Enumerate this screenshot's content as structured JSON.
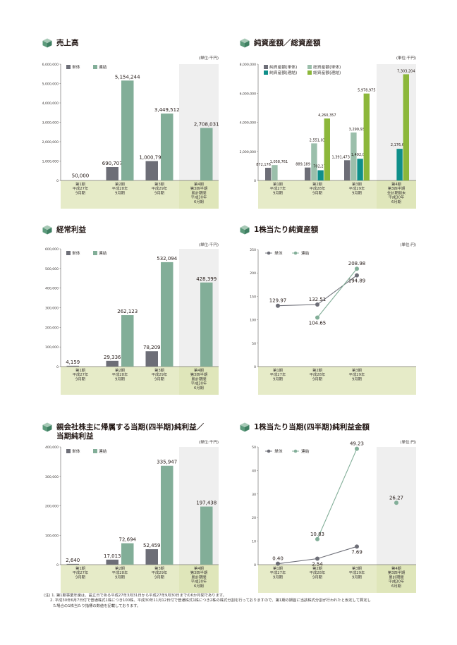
{
  "colors": {
    "tan": "#6d6e77",
    "ren": "#82ae98",
    "jun_tan": "#6d6e77",
    "sou_tan": "#9bbfab",
    "jun_ren": "#0f8f8a",
    "sou_ren": "#8cb73a",
    "band": "#e6ebc8",
    "shade": "#efefef"
  },
  "notes": [
    "(注) 1. 第1期事業年度は、設立日である平成27年3月31日から平成27年9月30日までの6か月間であります。",
    "2. 平成30年6月7日付で普通株式1株につき100株、平成30年11月12日付で普通株式1株につき2株の株式分割を行っておりますので、第1期の期首に当該株式分割が行われたと仮定して算定し",
    "た場合の1株当たり指標の数値を記載しております。"
  ],
  "chart_data": [
    {
      "type": "bar",
      "title": "売上高",
      "unit": "(単位:千円)",
      "categories": [
        "第1期\n平成27年\n9月期",
        "第2期\n平成28年\n9月期",
        "第3期\n平成29年\n9月期",
        "第4期\n第3四半期\n累計期間\n平成30年\n6月期"
      ],
      "ylim": [
        0,
        6000000
      ],
      "yticks": [
        "0",
        "1,000,000",
        "2,000,000",
        "3,000,000",
        "4,000,000",
        "5,000,000",
        "6,000,000"
      ],
      "shaded_last": true,
      "series": [
        {
          "name": "単体",
          "color": "#6d6e77",
          "values": [
            null,
            690707,
            1000798,
            null
          ],
          "labels": [
            "",
            "690,707",
            "1,000,798",
            ""
          ]
        },
        {
          "name": "連結",
          "color": "#82ae98",
          "values": [
            null,
            5154244,
            3449512,
            2708031
          ],
          "labels": [
            "",
            "5,154,244",
            "3,449,512",
            "2,708,031"
          ]
        }
      ],
      "extra_labels": [
        {
          "cat": 0,
          "value": 50000,
          "text": "50,000"
        }
      ]
    },
    {
      "type": "bar",
      "title": "純資産額／総資産額",
      "unit": "(単位:千円)",
      "categories": [
        "第1期\n平成27年\n9月期",
        "第2期\n平成28年\n9月期",
        "第3期\n平成29年\n9月期",
        "第4期\n第3四半期\n会計期間末\n平成30年\n6月期"
      ],
      "ylim": [
        0,
        8000000
      ],
      "yticks": [
        "0",
        "2,000,000",
        "4,000,000",
        "6,000,000",
        "8,000,000"
      ],
      "shaded_last": true,
      "series": [
        {
          "name": "純資産額(単体)",
          "color": "#6d6e77",
          "values": [
            872176,
            889189,
            1391473,
            null
          ],
          "labels": [
            "872,176",
            "889,189",
            "1,391,473",
            ""
          ]
        },
        {
          "name": "総資産額(単体)",
          "color": "#9bbfab",
          "values": [
            1058761,
            2551033,
            3299933,
            null
          ],
          "labels": [
            "1,058,761",
            "2,551,033",
            "3,299,933",
            ""
          ]
        },
        {
          "name": "純資産額(連結)",
          "color": "#0f8f8a",
          "values": [
            null,
            702277,
            1492092,
            2176670
          ],
          "labels": [
            "",
            "702,277",
            "1,492,092",
            "2,176,670"
          ]
        },
        {
          "name": "総資産額(連結)",
          "color": "#8cb73a",
          "values": [
            null,
            4260357,
            5978975,
            7303204
          ],
          "labels": [
            "",
            "4,260,357",
            "5,978,975",
            "7,303,204"
          ]
        }
      ]
    },
    {
      "type": "bar",
      "title": "経常利益",
      "unit": "(単位:千円)",
      "categories": [
        "第1期\n平成27年\n9月期",
        "第2期\n平成28年\n9月期",
        "第3期\n平成29年\n9月期",
        "第4期\n第3四半期\n累計期間\n平成30年\n6月期"
      ],
      "ylim": [
        0,
        600000
      ],
      "yticks": [
        "0",
        "100,000",
        "200,000",
        "300,000",
        "400,000",
        "500,000",
        "600,000"
      ],
      "shaded_last": true,
      "series": [
        {
          "name": "単体",
          "color": "#6d6e77",
          "values": [
            4159,
            29336,
            78209,
            null
          ],
          "labels": [
            "4,159",
            "29,336",
            "78,209",
            ""
          ]
        },
        {
          "name": "連結",
          "color": "#82ae98",
          "values": [
            null,
            262123,
            532094,
            428399
          ],
          "labels": [
            "",
            "262,123",
            "532,094",
            "428,399"
          ]
        }
      ]
    },
    {
      "type": "line",
      "title": "1株当たり純資産額",
      "unit": "(単位:円)",
      "categories": [
        "第1期\n平成27年\n9月期",
        "第2期\n平成28年\n9月期",
        "第3期\n平成29年\n9月期"
      ],
      "ylim": [
        0,
        250
      ],
      "yticks": [
        "0",
        "50",
        "100",
        "150",
        "200",
        "250"
      ],
      "slots": 4,
      "shaded_last": false,
      "series": [
        {
          "name": "単体",
          "color": "#6d6e77",
          "values": [
            129.97,
            132.51,
            194.89
          ],
          "labels": [
            "129.97",
            "132.51",
            "194.89"
          ]
        },
        {
          "name": "連結",
          "color": "#82ae98",
          "values": [
            null,
            104.65,
            208.98
          ],
          "labels": [
            "",
            "104.65",
            "208.98"
          ]
        }
      ]
    },
    {
      "type": "bar",
      "title": "親会社株主に帰属する当期(四半期)純利益／\n当期純利益",
      "unit": "(単位:千円)",
      "categories": [
        "第1期\n平成27年\n9月期",
        "第2期\n平成28年\n9月期",
        "第3期\n平成29年\n9月期",
        "第4期\n第3四半期\n累計期間\n平成30年\n6月期"
      ],
      "ylim": [
        0,
        400000
      ],
      "yticks": [
        "0",
        "100,000",
        "200,000",
        "300,000",
        "400,000"
      ],
      "shaded_last": true,
      "series": [
        {
          "name": "単体",
          "color": "#6d6e77",
          "values": [
            2640,
            17013,
            52459,
            null
          ],
          "labels": [
            "2,640",
            "17,013",
            "52,459",
            ""
          ]
        },
        {
          "name": "連結",
          "color": "#82ae98",
          "values": [
            null,
            72694,
            335947,
            197438
          ],
          "labels": [
            "",
            "72,694",
            "335,947",
            "197,438"
          ]
        }
      ]
    },
    {
      "type": "line",
      "title": "1株当たり当期(四半期)純利益金額",
      "unit": "(単位:円)",
      "categories": [
        "第1期\n平成27年\n9月期",
        "第2期\n平成28年\n9月期",
        "第3期\n平成29年\n9月期",
        "第4期\n第3四半期\n累計期間\n平成30年\n6月期"
      ],
      "ylim": [
        0,
        50
      ],
      "yticks": [
        "0",
        "10",
        "20",
        "30",
        "40",
        "50"
      ],
      "slots": 4,
      "shaded_last": true,
      "series": [
        {
          "name": "単体",
          "color": "#6d6e77",
          "values": [
            0.4,
            2.54,
            7.69,
            null
          ],
          "labels": [
            "0.40",
            "2.54",
            "7.69",
            ""
          ]
        },
        {
          "name": "連結",
          "color": "#82ae98",
          "values": [
            null,
            10.83,
            49.23,
            26.27
          ],
          "labels": [
            "",
            "10.83",
            "49.23",
            "26.27"
          ],
          "connect_upto": 2
        }
      ]
    }
  ]
}
